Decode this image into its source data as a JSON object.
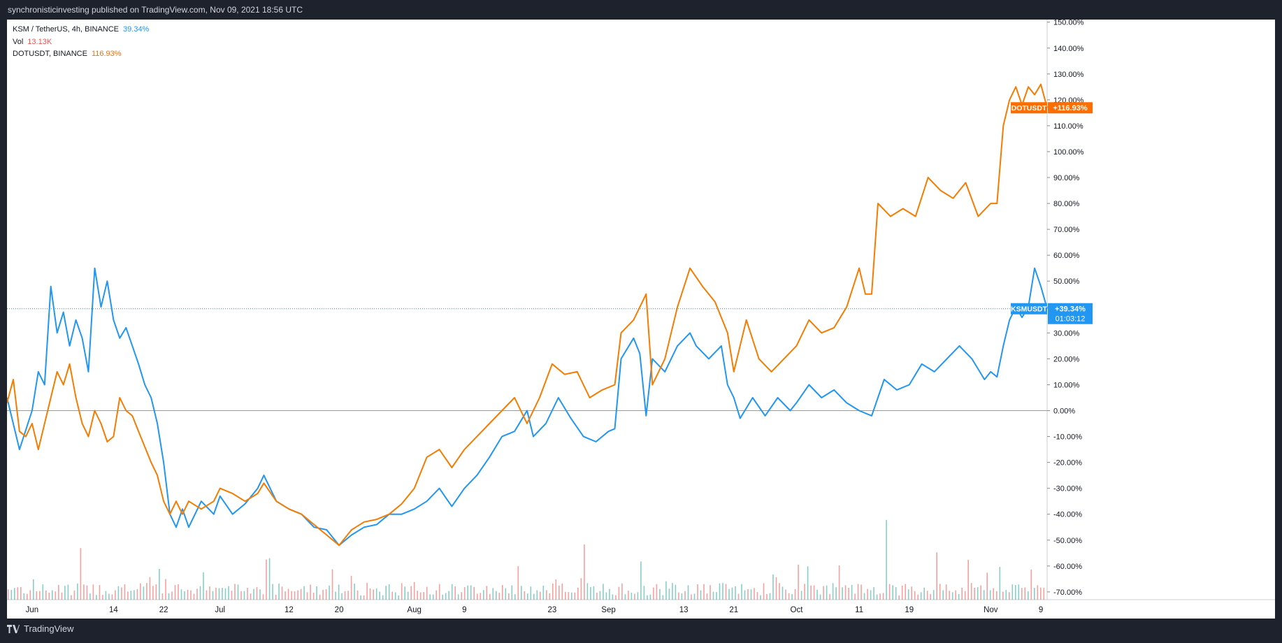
{
  "header": {
    "publisher_text": "synchronisticinvesting published on TradingView.com, Nov 09, 2021 18:56 UTC"
  },
  "footer": {
    "brand": "TradingView",
    "logo_icon": "tradingview-logo-icon"
  },
  "legend": [
    {
      "label": "KSM / TetherUS, 4h, BINANCE",
      "value": "39.34%",
      "color": "#2196f3"
    },
    {
      "label": "Vol",
      "value": "13.13K",
      "color": "#ef5350"
    },
    {
      "label": "DOTUSDT, BINANCE",
      "value": "116.93%",
      "color": "#ff6d00"
    }
  ],
  "colors": {
    "ksm": "#2196f3",
    "dot": "#f57c00",
    "vol_up": "#26a69a",
    "vol_down": "#ef5350",
    "baseline": "#8aa0b5",
    "background": "#ffffff"
  },
  "price_labels": [
    {
      "name": "DOTUSDT",
      "value": "+116.93%",
      "color": "#ff6d00"
    },
    {
      "name": "KSMUSDT",
      "value": "+39.34%",
      "countdown": "01:03:12",
      "color": "#2196f3"
    }
  ],
  "chart_data": {
    "type": "line",
    "y_unit": "percent change from start (%)",
    "x_ticks": [
      "Jun",
      "14",
      "22",
      "Jul",
      "12",
      "20",
      "Aug",
      "9",
      "23",
      "Sep",
      "13",
      "21",
      "Oct",
      "11",
      "19",
      "Nov",
      "9"
    ],
    "x_tick_dates": [
      "2021-06-01",
      "2021-06-14",
      "2021-06-22",
      "2021-07-01",
      "2021-07-12",
      "2021-07-20",
      "2021-08-01",
      "2021-08-09",
      "2021-08-23",
      "2021-09-01",
      "2021-09-13",
      "2021-09-21",
      "2021-10-01",
      "2021-10-11",
      "2021-10-19",
      "2021-11-01",
      "2021-11-09"
    ],
    "y_ticks": [
      -70,
      -60,
      -50,
      -40,
      -30,
      -20,
      -10,
      0,
      10,
      20,
      30,
      40,
      50,
      60,
      70,
      80,
      90,
      100,
      110,
      120,
      130,
      140,
      150
    ],
    "y_tick_labels": [
      "-70.00%",
      "-60.00%",
      "-50.00%",
      "-40.00%",
      "-30.00%",
      "-20.00%",
      "-10.00%",
      "0.00%",
      "10.00%",
      "20.00%",
      "30.00%",
      "40.00%",
      "50.00%",
      "60.00%",
      "70.00%",
      "80.00%",
      "90.00%",
      "100.00%",
      "110.00%",
      "120.00%",
      "130.00%",
      "140.00%",
      "150.00%"
    ],
    "ylim": [
      -73,
      151
    ],
    "xlim": [
      "2021-05-28",
      "2021-11-10"
    ],
    "grid": false,
    "series": [
      {
        "name": "KSMUSDT",
        "color": "#2196f3",
        "points": [
          [
            "2021-05-28",
            5
          ],
          [
            "2021-05-30",
            -15
          ],
          [
            "2021-06-01",
            0
          ],
          [
            "2021-06-02",
            15
          ],
          [
            "2021-06-03",
            10
          ],
          [
            "2021-06-04",
            48
          ],
          [
            "2021-06-05",
            30
          ],
          [
            "2021-06-06",
            38
          ],
          [
            "2021-06-07",
            25
          ],
          [
            "2021-06-08",
            35
          ],
          [
            "2021-06-09",
            28
          ],
          [
            "2021-06-10",
            15
          ],
          [
            "2021-06-11",
            55
          ],
          [
            "2021-06-12",
            40
          ],
          [
            "2021-06-13",
            50
          ],
          [
            "2021-06-14",
            35
          ],
          [
            "2021-06-15",
            28
          ],
          [
            "2021-06-16",
            32
          ],
          [
            "2021-06-17",
            25
          ],
          [
            "2021-06-18",
            18
          ],
          [
            "2021-06-19",
            10
          ],
          [
            "2021-06-20",
            5
          ],
          [
            "2021-06-21",
            -5
          ],
          [
            "2021-06-22",
            -20
          ],
          [
            "2021-06-23",
            -40
          ],
          [
            "2021-06-24",
            -45
          ],
          [
            "2021-06-25",
            -38
          ],
          [
            "2021-06-26",
            -45
          ],
          [
            "2021-06-28",
            -35
          ],
          [
            "2021-06-30",
            -40
          ],
          [
            "2021-07-01",
            -33
          ],
          [
            "2021-07-03",
            -40
          ],
          [
            "2021-07-05",
            -36
          ],
          [
            "2021-07-07",
            -30
          ],
          [
            "2021-07-08",
            -25
          ],
          [
            "2021-07-10",
            -35
          ],
          [
            "2021-07-12",
            -38
          ],
          [
            "2021-07-14",
            -40
          ],
          [
            "2021-07-16",
            -45
          ],
          [
            "2021-07-18",
            -46
          ],
          [
            "2021-07-20",
            -52
          ],
          [
            "2021-07-22",
            -48
          ],
          [
            "2021-07-24",
            -45
          ],
          [
            "2021-07-26",
            -44
          ],
          [
            "2021-07-28",
            -40
          ],
          [
            "2021-07-30",
            -40
          ],
          [
            "2021-08-01",
            -38
          ],
          [
            "2021-08-03",
            -35
          ],
          [
            "2021-08-05",
            -30
          ],
          [
            "2021-08-07",
            -37
          ],
          [
            "2021-08-09",
            -30
          ],
          [
            "2021-08-11",
            -25
          ],
          [
            "2021-08-13",
            -18
          ],
          [
            "2021-08-15",
            -10
          ],
          [
            "2021-08-17",
            -8
          ],
          [
            "2021-08-19",
            0
          ],
          [
            "2021-08-20",
            -10
          ],
          [
            "2021-08-22",
            -5
          ],
          [
            "2021-08-24",
            5
          ],
          [
            "2021-08-26",
            -3
          ],
          [
            "2021-08-28",
            -10
          ],
          [
            "2021-08-30",
            -12
          ],
          [
            "2021-09-01",
            -8
          ],
          [
            "2021-09-02",
            -7
          ],
          [
            "2021-09-03",
            20
          ],
          [
            "2021-09-05",
            28
          ],
          [
            "2021-09-06",
            22
          ],
          [
            "2021-09-07",
            -2
          ],
          [
            "2021-09-08",
            20
          ],
          [
            "2021-09-10",
            15
          ],
          [
            "2021-09-12",
            25
          ],
          [
            "2021-09-14",
            30
          ],
          [
            "2021-09-15",
            25
          ],
          [
            "2021-09-17",
            20
          ],
          [
            "2021-09-19",
            25
          ],
          [
            "2021-09-20",
            10
          ],
          [
            "2021-09-21",
            5
          ],
          [
            "2021-09-22",
            -3
          ],
          [
            "2021-09-24",
            5
          ],
          [
            "2021-09-26",
            -2
          ],
          [
            "2021-09-28",
            5
          ],
          [
            "2021-09-30",
            0
          ],
          [
            "2021-10-01",
            3
          ],
          [
            "2021-10-03",
            10
          ],
          [
            "2021-10-05",
            5
          ],
          [
            "2021-10-07",
            8
          ],
          [
            "2021-10-09",
            3
          ],
          [
            "2021-10-11",
            0
          ],
          [
            "2021-10-13",
            -2
          ],
          [
            "2021-10-15",
            12
          ],
          [
            "2021-10-17",
            8
          ],
          [
            "2021-10-19",
            10
          ],
          [
            "2021-10-21",
            18
          ],
          [
            "2021-10-23",
            15
          ],
          [
            "2021-10-25",
            20
          ],
          [
            "2021-10-27",
            25
          ],
          [
            "2021-10-29",
            20
          ],
          [
            "2021-10-31",
            12
          ],
          [
            "2021-11-01",
            15
          ],
          [
            "2021-11-02",
            13
          ],
          [
            "2021-11-03",
            25
          ],
          [
            "2021-11-04",
            35
          ],
          [
            "2021-11-05",
            40
          ],
          [
            "2021-11-06",
            36
          ],
          [
            "2021-11-07",
            40
          ],
          [
            "2021-11-08",
            55
          ],
          [
            "2021-11-09",
            48
          ],
          [
            "2021-11-10",
            39.34
          ]
        ]
      },
      {
        "name": "DOTUSDT",
        "color": "#f57c00",
        "points": [
          [
            "2021-05-28",
            3
          ],
          [
            "2021-05-29",
            12
          ],
          [
            "2021-05-30",
            -8
          ],
          [
            "2021-05-31",
            -10
          ],
          [
            "2021-06-01",
            -5
          ],
          [
            "2021-06-02",
            -15
          ],
          [
            "2021-06-03",
            -5
          ],
          [
            "2021-06-04",
            5
          ],
          [
            "2021-06-05",
            15
          ],
          [
            "2021-06-06",
            10
          ],
          [
            "2021-06-07",
            18
          ],
          [
            "2021-06-08",
            5
          ],
          [
            "2021-06-09",
            -5
          ],
          [
            "2021-06-10",
            -10
          ],
          [
            "2021-06-11",
            0
          ],
          [
            "2021-06-12",
            -5
          ],
          [
            "2021-06-13",
            -12
          ],
          [
            "2021-06-14",
            -10
          ],
          [
            "2021-06-15",
            5
          ],
          [
            "2021-06-16",
            0
          ],
          [
            "2021-06-17",
            -2
          ],
          [
            "2021-06-18",
            -8
          ],
          [
            "2021-06-19",
            -14
          ],
          [
            "2021-06-20",
            -20
          ],
          [
            "2021-06-21",
            -25
          ],
          [
            "2021-06-22",
            -35
          ],
          [
            "2021-06-23",
            -40
          ],
          [
            "2021-06-24",
            -35
          ],
          [
            "2021-06-25",
            -40
          ],
          [
            "2021-06-26",
            -35
          ],
          [
            "2021-06-28",
            -38
          ],
          [
            "2021-06-30",
            -35
          ],
          [
            "2021-07-01",
            -30
          ],
          [
            "2021-07-03",
            -32
          ],
          [
            "2021-07-05",
            -35
          ],
          [
            "2021-07-07",
            -32
          ],
          [
            "2021-07-08",
            -28
          ],
          [
            "2021-07-10",
            -35
          ],
          [
            "2021-07-12",
            -38
          ],
          [
            "2021-07-14",
            -40
          ],
          [
            "2021-07-16",
            -44
          ],
          [
            "2021-07-18",
            -48
          ],
          [
            "2021-07-20",
            -52
          ],
          [
            "2021-07-22",
            -46
          ],
          [
            "2021-07-24",
            -43
          ],
          [
            "2021-07-26",
            -42
          ],
          [
            "2021-07-28",
            -40
          ],
          [
            "2021-07-30",
            -36
          ],
          [
            "2021-08-01",
            -30
          ],
          [
            "2021-08-03",
            -18
          ],
          [
            "2021-08-05",
            -15
          ],
          [
            "2021-08-07",
            -22
          ],
          [
            "2021-08-09",
            -15
          ],
          [
            "2021-08-11",
            -10
          ],
          [
            "2021-08-13",
            -5
          ],
          [
            "2021-08-15",
            0
          ],
          [
            "2021-08-17",
            5
          ],
          [
            "2021-08-19",
            -5
          ],
          [
            "2021-08-21",
            5
          ],
          [
            "2021-08-23",
            18
          ],
          [
            "2021-08-25",
            14
          ],
          [
            "2021-08-27",
            15
          ],
          [
            "2021-08-29",
            5
          ],
          [
            "2021-08-31",
            8
          ],
          [
            "2021-09-02",
            10
          ],
          [
            "2021-09-03",
            30
          ],
          [
            "2021-09-05",
            35
          ],
          [
            "2021-09-07",
            45
          ],
          [
            "2021-09-08",
            10
          ],
          [
            "2021-09-10",
            20
          ],
          [
            "2021-09-12",
            40
          ],
          [
            "2021-09-14",
            55
          ],
          [
            "2021-09-16",
            48
          ],
          [
            "2021-09-18",
            42
          ],
          [
            "2021-09-20",
            30
          ],
          [
            "2021-09-21",
            15
          ],
          [
            "2021-09-23",
            35
          ],
          [
            "2021-09-25",
            20
          ],
          [
            "2021-09-27",
            15
          ],
          [
            "2021-09-29",
            20
          ],
          [
            "2021-10-01",
            25
          ],
          [
            "2021-10-03",
            35
          ],
          [
            "2021-10-05",
            30
          ],
          [
            "2021-10-07",
            32
          ],
          [
            "2021-10-09",
            40
          ],
          [
            "2021-10-11",
            55
          ],
          [
            "2021-10-12",
            45
          ],
          [
            "2021-10-13",
            45
          ],
          [
            "2021-10-14",
            80
          ],
          [
            "2021-10-16",
            75
          ],
          [
            "2021-10-18",
            78
          ],
          [
            "2021-10-20",
            75
          ],
          [
            "2021-10-22",
            90
          ],
          [
            "2021-10-24",
            85
          ],
          [
            "2021-10-26",
            82
          ],
          [
            "2021-10-28",
            88
          ],
          [
            "2021-10-30",
            75
          ],
          [
            "2021-11-01",
            80
          ],
          [
            "2021-11-02",
            80
          ],
          [
            "2021-11-03",
            110
          ],
          [
            "2021-11-04",
            120
          ],
          [
            "2021-11-05",
            125
          ],
          [
            "2021-11-06",
            118
          ],
          [
            "2021-11-07",
            125
          ],
          [
            "2021-11-08",
            122
          ],
          [
            "2021-11-09",
            126
          ],
          [
            "2021-11-10",
            116.93
          ]
        ]
      }
    ],
    "volume": {
      "name": "Vol",
      "last": "13.13K"
    }
  }
}
